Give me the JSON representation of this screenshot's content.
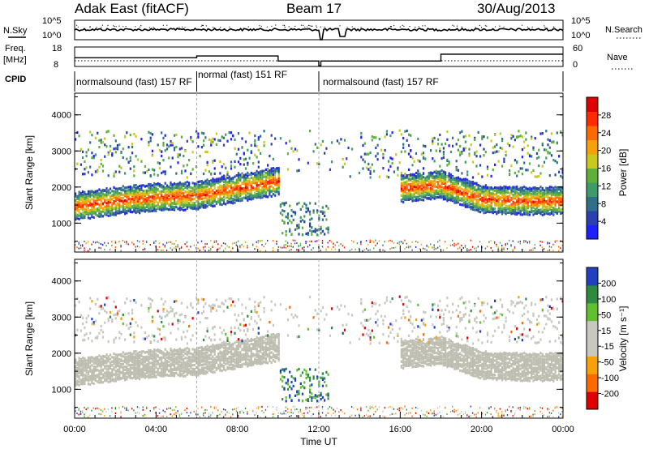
{
  "header": {
    "title": "Adak East (fitACF)",
    "beam": "Beam 17",
    "date": "30/Aug/2013"
  },
  "labels": {
    "nsky": "N.Sky",
    "nsearch": "N.Search",
    "freq_line1": "Freq.",
    "freq_line2": "[MHz]",
    "nave": "Nave",
    "cpid": "CPID",
    "xlabel": "Time UT"
  },
  "noise_axis": {
    "left_ticks": [
      "10^5",
      "10^0"
    ],
    "right_ticks": [
      "10^5",
      "10^0"
    ]
  },
  "freq_axis": {
    "left_ticks": [
      "18",
      "8"
    ],
    "right_ticks": [
      "60",
      "0"
    ],
    "left_range": [
      8,
      18
    ],
    "right_range": [
      0,
      60
    ]
  },
  "cpid_segments": [
    {
      "label": "normalsound (fast) 157 RF",
      "start_h": 0,
      "end_h": 6
    },
    {
      "label": "normal (fast) 151 RF",
      "start_h": 6,
      "end_h": 12
    },
    {
      "label": "normalsound (fast) 157 RF",
      "start_h": 12,
      "end_h": 24
    }
  ],
  "chart_data": [
    {
      "type": "heatmap",
      "name": "power",
      "xlabel": "",
      "ylabel": "Slant Range [km]",
      "xlim": [
        0,
        24
      ],
      "ylim": [
        200,
        4600
      ],
      "yticks": [
        "1000",
        "2000",
        "3000",
        "4000"
      ],
      "colorbar": {
        "label": "Power [dB]",
        "ticks": [
          "28",
          "24",
          "20",
          "16",
          "12",
          "8",
          "4"
        ],
        "range": [
          0,
          32
        ]
      },
      "approx_echo_band": {
        "x_hours": [
          0,
          2,
          4,
          6,
          8,
          10,
          12,
          14,
          16,
          18,
          20,
          22,
          24
        ],
        "range_km": [
          1500,
          1650,
          1750,
          1800,
          2000,
          2200,
          null,
          null,
          2000,
          2100,
          1700,
          1650,
          1650
        ]
      }
    },
    {
      "type": "heatmap",
      "name": "velocity",
      "xlabel": "Time UT",
      "ylabel": "Slant Range [km]",
      "xlim": [
        0,
        24
      ],
      "ylim": [
        200,
        4600
      ],
      "yticks": [
        "1000",
        "2000",
        "3000",
        "4000"
      ],
      "xticks": [
        "00:00",
        "04:00",
        "08:00",
        "12:00",
        "16:00",
        "20:00",
        "00:00"
      ],
      "colorbar": {
        "label": "Velocity [m s⁻¹]",
        "ticks": [
          "200",
          "100",
          "50",
          "15",
          "-15",
          "-50",
          "-100",
          "-200"
        ]
      }
    }
  ],
  "colors": {
    "power_scale": [
      "#1f1fff",
      "#2a3fb0",
      "#2f6f8a",
      "#3f9a6a",
      "#5faf3a",
      "#c8c81e",
      "#f5a20a",
      "#ff6a00",
      "#ff2a00",
      "#e00000"
    ],
    "velocity_scale": [
      "#e00000",
      "#ff6a00",
      "#f5a20a",
      "#c8c8c0",
      "#c8c8c0",
      "#60c030",
      "#2e8a40",
      "#2040c0"
    ],
    "ground_scatter": "#bdbdb0"
  }
}
